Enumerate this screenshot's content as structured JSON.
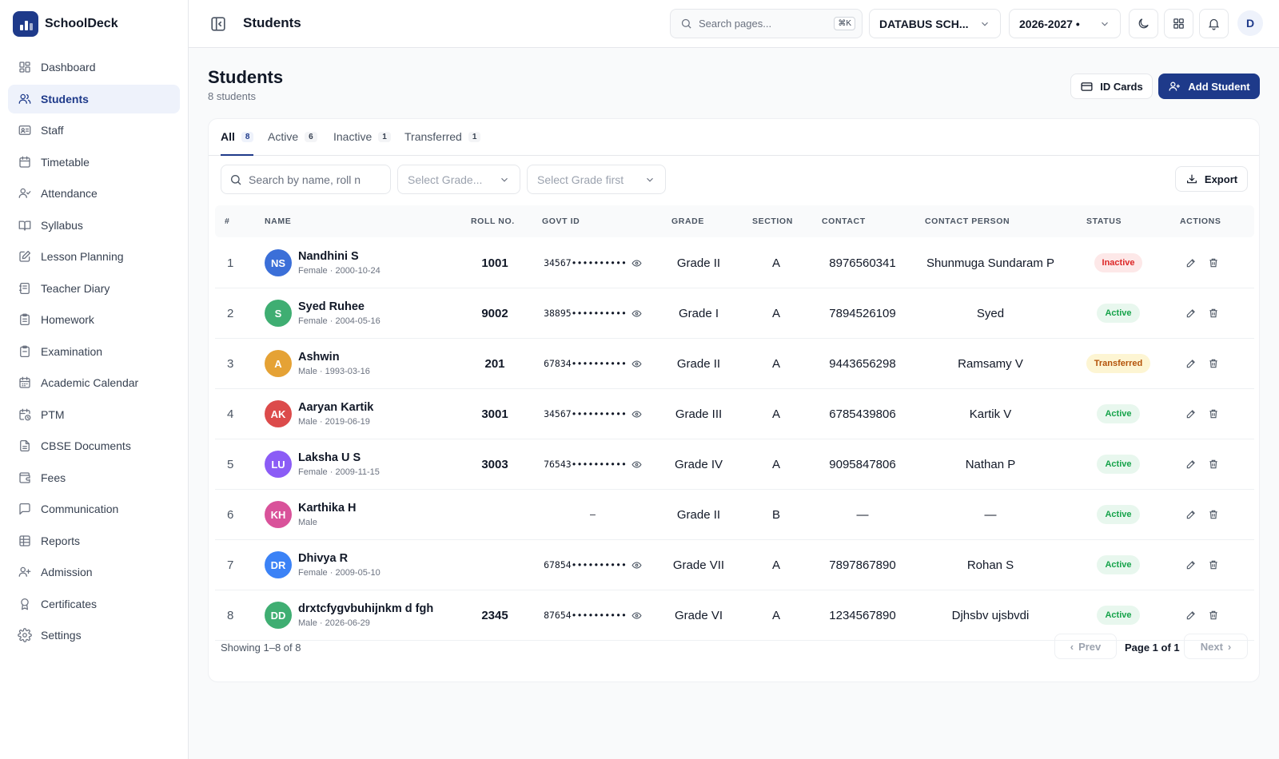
{
  "app": {
    "name": "SchoolDeck"
  },
  "sidebar": {
    "items": [
      {
        "label": "Dashboard",
        "icon": "dashboard-icon"
      },
      {
        "label": "Students",
        "icon": "users-icon",
        "active": true
      },
      {
        "label": "Staff",
        "icon": "id-card-icon"
      },
      {
        "label": "Timetable",
        "icon": "calendar-icon"
      },
      {
        "label": "Attendance",
        "icon": "user-check-icon"
      },
      {
        "label": "Syllabus",
        "icon": "book-open-icon"
      },
      {
        "label": "Lesson Planning",
        "icon": "pencil-square-icon"
      },
      {
        "label": "Teacher Diary",
        "icon": "notebook-icon"
      },
      {
        "label": "Homework",
        "icon": "clipboard-list-icon"
      },
      {
        "label": "Examination",
        "icon": "clipboard-icon"
      },
      {
        "label": "Academic Calendar",
        "icon": "calendar-days-icon"
      },
      {
        "label": "PTM",
        "icon": "calendar-clock-icon"
      },
      {
        "label": "CBSE Documents",
        "icon": "document-icon"
      },
      {
        "label": "Fees",
        "icon": "wallet-icon"
      },
      {
        "label": "Communication",
        "icon": "message-icon"
      },
      {
        "label": "Reports",
        "icon": "table-icon"
      },
      {
        "label": "Admission",
        "icon": "user-plus-icon"
      },
      {
        "label": "Certificates",
        "icon": "award-icon"
      },
      {
        "label": "Settings",
        "icon": "gear-icon"
      }
    ]
  },
  "topbar": {
    "page_title": "Students",
    "search_placeholder": "Search pages...",
    "search_shortcut": "⌘K",
    "school": "DATABUS SCH...",
    "year": "2026-2027 •",
    "user_initial": "D"
  },
  "main": {
    "title": "Students",
    "subtitle": "8 students",
    "id_cards_label": "ID Cards",
    "add_student_label": "Add Student"
  },
  "tabs": [
    {
      "label": "All",
      "count": "8",
      "active": true
    },
    {
      "label": "Active",
      "count": "6"
    },
    {
      "label": "Inactive",
      "count": "1"
    },
    {
      "label": "Transferred",
      "count": "1"
    }
  ],
  "filters": {
    "search_placeholder": "Search by name, roll n",
    "grade_placeholder": "Select Grade...",
    "section_placeholder": "Select Grade first",
    "export_label": "Export"
  },
  "table": {
    "columns": [
      "#",
      "NAME",
      "ROLL NO.",
      "GOVT ID",
      "GRADE",
      "SECTION",
      "CONTACT",
      "CONTACT PERSON",
      "STATUS",
      "ACTIONS"
    ],
    "rows": [
      {
        "idx": "1",
        "initials": "NS",
        "avatar_color": "#3b6fd8",
        "name": "Nandhini S",
        "meta": "Female · 2000-10-24",
        "roll": "1001",
        "govt": "34567••••••••••",
        "govt_visible": true,
        "grade": "Grade II",
        "section": "A",
        "contact": "8976560341",
        "person": "Shunmuga Sundaram P",
        "status": "Inactive",
        "status_kind": "inactive"
      },
      {
        "idx": "2",
        "initials": "S",
        "avatar_color": "#3fae72",
        "name": "Syed Ruhee",
        "meta": "Female · 2004-05-16",
        "roll": "9002",
        "govt": "38895••••••••••",
        "govt_visible": true,
        "grade": "Grade I",
        "section": "A",
        "contact": "7894526109",
        "person": "Syed",
        "status": "Active",
        "status_kind": "active"
      },
      {
        "idx": "3",
        "initials": "A",
        "avatar_color": "#e5a235",
        "name": "Ashwin",
        "meta": "Male · 1993-03-16",
        "roll": "201",
        "govt": "67834••••••••••",
        "govt_visible": true,
        "grade": "Grade II",
        "section": "A",
        "contact": "9443656298",
        "person": "Ramsamy V",
        "status": "Transferred",
        "status_kind": "transferred"
      },
      {
        "idx": "4",
        "initials": "AK",
        "avatar_color": "#dc4b4b",
        "name": "Aaryan Kartik",
        "meta": "Male · 2019-06-19",
        "roll": "3001",
        "govt": "34567••••••••••",
        "govt_visible": true,
        "grade": "Grade III",
        "section": "A",
        "contact": "6785439806",
        "person": "Kartik V",
        "status": "Active",
        "status_kind": "active"
      },
      {
        "idx": "5",
        "initials": "LU",
        "avatar_color": "#8b5cf6",
        "name": "Laksha U S",
        "meta": "Female · 2009-11-15",
        "roll": "3003",
        "govt": "76543••••••••••",
        "govt_visible": true,
        "grade": "Grade IV",
        "section": "A",
        "contact": "9095847806",
        "person": "Nathan P",
        "status": "Active",
        "status_kind": "active"
      },
      {
        "idx": "6",
        "initials": "KH",
        "avatar_color": "#d9529a",
        "name": "Karthika H",
        "meta": "Male",
        "roll": "",
        "govt": "–",
        "govt_visible": false,
        "grade": "Grade II",
        "section": "B",
        "contact": "—",
        "person": "—",
        "status": "Active",
        "status_kind": "active"
      },
      {
        "idx": "7",
        "initials": "DR",
        "avatar_color": "#3b82f6",
        "name": "Dhivya R",
        "meta": "Female · 2009-05-10",
        "roll": "",
        "govt": "67854••••••••••",
        "govt_visible": true,
        "grade": "Grade VII",
        "section": "A",
        "contact": "7897867890",
        "person": "Rohan S",
        "status": "Active",
        "status_kind": "active"
      },
      {
        "idx": "8",
        "initials": "DD",
        "avatar_color": "#3fae72",
        "name": "drxtcfygvbuhijnkm d fgh",
        "meta": "Male · 2026-06-29",
        "roll": "2345",
        "govt": "87654••••••••••",
        "govt_visible": true,
        "grade": "Grade VI",
        "section": "A",
        "contact": "1234567890",
        "person": "Djhsbv ujsbvdi",
        "status": "Active",
        "status_kind": "active"
      }
    ]
  },
  "footer": {
    "showing": "Showing 1–8 of 8",
    "prev_label": "Prev",
    "page_info": "Page 1 of 1",
    "next_label": "Next"
  }
}
